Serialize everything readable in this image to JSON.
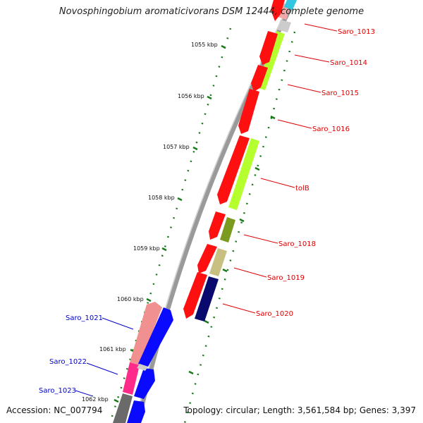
{
  "title": "Novosphingobium aromaticivorans DSM 12444, complete genome",
  "footer": {
    "accession": "Accession: NC_007794",
    "topology": "Topology: circular; Length: 3,561,584 bp; Genes: 3,397"
  },
  "colors": {
    "backbone": "#888888",
    "forward_label": "#0000cc",
    "reverse_label": "#cc0000",
    "tick": "#1a7a1a"
  },
  "scale_labels": [
    "1055 kbp",
    "1056 kbp",
    "1057 kbp",
    "1058 kbp",
    "1059 kbp",
    "1060 kbp",
    "1061 kbp",
    "1062 kbp"
  ],
  "genes_reverse_strand": [
    "Saro_1013",
    "Saro_1014",
    "Saro_1015",
    "Saro_1016",
    "tolB",
    "Saro_1018",
    "Saro_1019",
    "Saro_1020"
  ],
  "genes_forward_strand": [
    "Saro_1021",
    "Saro_1022",
    "Saro_1023"
  ]
}
